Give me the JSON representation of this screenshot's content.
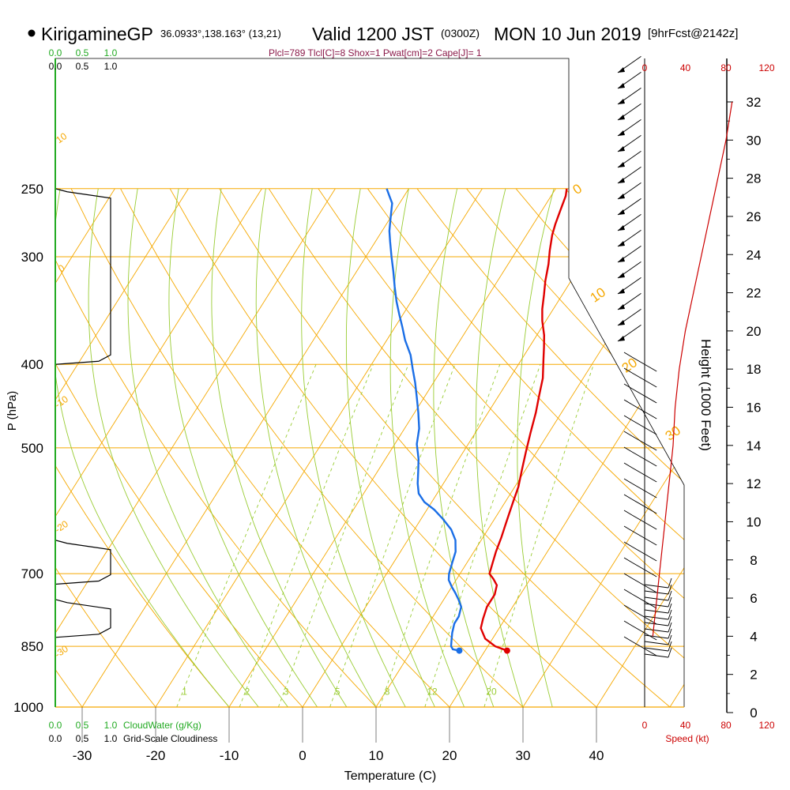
{
  "header": {
    "site_name": "KirigamineGP",
    "site_coords": "36.0933°,138.163° (13,21)",
    "valid_label": "Valid 1200 JST",
    "utc_label": "(0300Z)",
    "date_label": "MON 10 Jun 2019",
    "forecast_label": "[9hrFcst@2142z]",
    "indices": "Plcl=789 Tlcl[C]=8 Shox=1 Pwat[cm]=2 Cape[J]= 1"
  },
  "colors": {
    "isobar": "#f5a800",
    "dry_adiabat": "#f5a800",
    "moist_adiabat": "#99cc33",
    "mixing_ratio": "#99cc33",
    "temperature": "#e00000",
    "dewpoint": "#1a6ee6",
    "cloud_water": "#22aa22",
    "parcel": "#8b1a4a",
    "speed": "#cc0000"
  },
  "chart_data": {
    "type": "line",
    "title": "",
    "xlabel": "Temperature (C)",
    "ylabel": "P (hPa)",
    "x_ticks": [
      "-30",
      "-20",
      "-10",
      "0",
      "10",
      "20",
      "30",
      "40"
    ],
    "y_ticks": [
      "250",
      "300",
      "400",
      "500",
      "700",
      "850",
      "1000"
    ],
    "right_axis_label": "Height (1000 Feet)",
    "height_ticks": [
      "0",
      "2",
      "4",
      "6",
      "8",
      "10",
      "12",
      "14",
      "16",
      "18",
      "20",
      "22",
      "24",
      "26",
      "28",
      "30",
      "32"
    ],
    "mixing_ratio_labels": [
      "1",
      "2",
      "3",
      "5",
      "8",
      "12",
      "20"
    ],
    "dry_adiabat_labels": [
      "10",
      "0",
      "-10",
      "-20",
      "-30",
      "0",
      "10",
      "20",
      "30"
    ],
    "cloud_water_ticks": [
      "0.0",
      "0.5",
      "1.0"
    ],
    "cloudiness_ticks": [
      "0.0",
      "0.5",
      "1.0"
    ],
    "cloud_water_label": "CloudWater (g/Kg)",
    "cloudiness_label": "Grid-Scale Cloudiness",
    "speed_ticks": [
      "0",
      "40",
      "80",
      "120"
    ],
    "speed_label": "Speed (kt)",
    "series": [
      {
        "name": "Temperature",
        "points": [
          [
            23,
            860
          ],
          [
            21,
            850
          ],
          [
            19,
            833
          ],
          [
            17.5,
            810
          ],
          [
            17,
            790
          ],
          [
            16.5,
            765
          ],
          [
            16.5,
            740
          ],
          [
            16,
            722
          ],
          [
            15,
            710
          ],
          [
            14,
            700
          ],
          [
            13.5,
            680
          ],
          [
            13,
            660
          ],
          [
            12.5,
            635
          ],
          [
            12,
            615
          ],
          [
            11.5,
            595
          ],
          [
            11,
            575
          ],
          [
            10.5,
            555
          ],
          [
            9.5,
            530
          ],
          [
            8.5,
            505
          ],
          [
            7.5,
            480
          ],
          [
            6.5,
            455
          ],
          [
            5.5,
            435
          ],
          [
            4.5,
            415
          ],
          [
            3,
            395
          ],
          [
            2,
            382
          ],
          [
            1,
            370
          ],
          [
            -0.5,
            356
          ],
          [
            -1.5,
            345
          ],
          [
            -2.5,
            332
          ],
          [
            -3.5,
            320
          ],
          [
            -4.5,
            306
          ],
          [
            -5.5,
            295
          ],
          [
            -6.5,
            283
          ],
          [
            -7,
            275
          ],
          [
            -7.5,
            265
          ],
          [
            -8,
            255
          ],
          [
            -8.5,
            250
          ]
        ]
      },
      {
        "name": "Dewpoint",
        "points": [
          [
            16.5,
            860
          ],
          [
            15.5,
            857
          ],
          [
            15,
            850
          ],
          [
            14.5,
            835
          ],
          [
            14,
            820
          ],
          [
            13.5,
            800
          ],
          [
            13.5,
            785
          ],
          [
            13,
            765
          ],
          [
            12,
            750
          ],
          [
            11,
            737
          ],
          [
            10,
            725
          ],
          [
            9,
            712
          ],
          [
            8.5,
            700
          ],
          [
            8,
            680
          ],
          [
            7.5,
            660
          ],
          [
            6.5,
            640
          ],
          [
            5,
            622
          ],
          [
            3,
            605
          ],
          [
            1,
            590
          ],
          [
            -1,
            578
          ],
          [
            -2.5,
            565
          ],
          [
            -3.5,
            550
          ],
          [
            -4.5,
            532
          ],
          [
            -5.5,
            515
          ],
          [
            -7,
            495
          ],
          [
            -8,
            475
          ],
          [
            -9.5,
            455
          ],
          [
            -11,
            437
          ],
          [
            -12.5,
            420
          ],
          [
            -14,
            405
          ],
          [
            -15.5,
            390
          ],
          [
            -17.5,
            375
          ],
          [
            -19,
            362
          ],
          [
            -20.5,
            350
          ],
          [
            -22,
            338
          ],
          [
            -23.5,
            325
          ],
          [
            -25,
            312
          ],
          [
            -26.5,
            300
          ],
          [
            -28,
            288
          ],
          [
            -29,
            280
          ],
          [
            -30,
            270
          ],
          [
            -31,
            260
          ],
          [
            -32,
            255
          ],
          [
            -33,
            250
          ]
        ]
      }
    ],
    "cloud_water": [],
    "cloudiness_layers": [
      {
        "levels_hPa": [
          640,
          720
        ],
        "fraction": 1.0
      },
      {
        "levels_hPa": [
          750,
          830
        ],
        "fraction": 1.0
      },
      {
        "levels_hPa": [
          250,
          400
        ],
        "fraction": 1.0
      }
    ],
    "wind_speed_kt": [
      8,
      10,
      12,
      14,
      16,
      18,
      20,
      22,
      24,
      26,
      28,
      30,
      34,
      40,
      48,
      56,
      64,
      72,
      80,
      86
    ],
    "wind_speed_heights_kft": [
      4,
      5,
      6,
      7,
      8,
      9,
      10,
      11,
      12,
      13,
      14,
      16,
      18,
      20,
      22,
      24,
      26,
      28,
      30,
      32
    ]
  }
}
